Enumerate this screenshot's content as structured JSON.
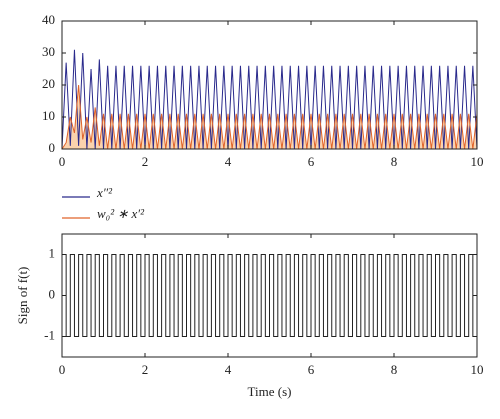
{
  "chart_data": [
    {
      "type": "line",
      "x": [
        0,
        0.1,
        0.2,
        0.3,
        0.4,
        0.5,
        0.6,
        0.7,
        0.8,
        0.9,
        1,
        1.1,
        1.2,
        1.3,
        1.4,
        1.5,
        1.6,
        1.7,
        1.8,
        1.9,
        2,
        2.1,
        2.2,
        2.3,
        2.4,
        2.5,
        2.6,
        2.7,
        2.8,
        2.9,
        3,
        3.1,
        3.2,
        3.3,
        3.4,
        3.5,
        3.6,
        3.7,
        3.8,
        3.9,
        4,
        4.1,
        4.2,
        4.3,
        4.4,
        4.5,
        4.6,
        4.7,
        4.8,
        4.9,
        5,
        5.1,
        5.2,
        5.3,
        5.4,
        5.5,
        5.6,
        5.7,
        5.8,
        5.9,
        6,
        6.1,
        6.2,
        6.3,
        6.4,
        6.5,
        6.6,
        6.7,
        6.8,
        6.9,
        7,
        7.1,
        7.2,
        7.3,
        7.4,
        7.5,
        7.6,
        7.7,
        7.8,
        7.9,
        8,
        8.1,
        8.2,
        8.3,
        8.4,
        8.5,
        8.6,
        8.7,
        8.8,
        8.9,
        9,
        9.1,
        9.2,
        9.3,
        9.4,
        9.5,
        9.6,
        9.7,
        9.8,
        9.9,
        10
      ],
      "series": [
        {
          "name": "x″²",
          "color": "#2a2a8c",
          "values": [
            0,
            27,
            1,
            31,
            1,
            30,
            0,
            25,
            0,
            28,
            0,
            26,
            0,
            26,
            0,
            26,
            0,
            26,
            0,
            26,
            0,
            26,
            0,
            26,
            0,
            26,
            0,
            26,
            0,
            26,
            0,
            26,
            0,
            26,
            0,
            26,
            0,
            26,
            0,
            26,
            0,
            26,
            0,
            26,
            0,
            26,
            0,
            26,
            0,
            26,
            0,
            26,
            0,
            26,
            0,
            26,
            0,
            26,
            0,
            26,
            0,
            26,
            0,
            26,
            0,
            26,
            0,
            26,
            0,
            26,
            0,
            26,
            0,
            26,
            0,
            26,
            0,
            26,
            0,
            26,
            0,
            26,
            0,
            26,
            0,
            26,
            0,
            26,
            0,
            26,
            0,
            26,
            0,
            26,
            0,
            26,
            0,
            26,
            0,
            26,
            0
          ]
        },
        {
          "name": "w₀² ∗ x′²",
          "color": "#e0642a",
          "fill": "#fbd3ad",
          "values": [
            0,
            2,
            10,
            5,
            20,
            3,
            10,
            2,
            13,
            1,
            11,
            0,
            11,
            0,
            11,
            0,
            11,
            0,
            11,
            0,
            11,
            0,
            11,
            0,
            11,
            0,
            11,
            0,
            11,
            0,
            11,
            0,
            11,
            0,
            11,
            0,
            11,
            0,
            11,
            0,
            11,
            0,
            11,
            0,
            11,
            0,
            11,
            0,
            11,
            0,
            11,
            0,
            11,
            0,
            11,
            0,
            11,
            0,
            11,
            0,
            11,
            0,
            11,
            0,
            11,
            0,
            11,
            0,
            11,
            0,
            11,
            0,
            11,
            0,
            11,
            0,
            11,
            0,
            11,
            0,
            11,
            0,
            11,
            0,
            11,
            0,
            11,
            0,
            11,
            0,
            11,
            0,
            11,
            0,
            11,
            0,
            11,
            0,
            11,
            0,
            11
          ]
        }
      ],
      "xlim": [
        0,
        10
      ],
      "xticks": [
        0,
        2,
        4,
        6,
        8,
        10
      ],
      "ylim": [
        0,
        40
      ],
      "yticks": [
        0,
        10,
        20,
        30,
        40
      ],
      "legend": "below"
    },
    {
      "type": "step",
      "x": [
        0,
        0.1,
        0.2,
        0.3,
        0.4,
        0.5,
        0.6,
        0.7,
        0.8,
        0.9,
        1,
        1.1,
        1.2,
        1.3,
        1.4,
        1.5,
        1.6,
        1.7,
        1.8,
        1.9,
        2,
        2.1,
        2.2,
        2.3,
        2.4,
        2.5,
        2.6,
        2.7,
        2.8,
        2.9,
        3,
        3.1,
        3.2,
        3.3,
        3.4,
        3.5,
        3.6,
        3.7,
        3.8,
        3.9,
        4,
        4.1,
        4.2,
        4.3,
        4.4,
        4.5,
        4.6,
        4.7,
        4.8,
        4.9,
        5,
        5.1,
        5.2,
        5.3,
        5.4,
        5.5,
        5.6,
        5.7,
        5.8,
        5.9,
        6,
        6.1,
        6.2,
        6.3,
        6.4,
        6.5,
        6.6,
        6.7,
        6.8,
        6.9,
        7,
        7.1,
        7.2,
        7.3,
        7.4,
        7.5,
        7.6,
        7.7,
        7.8,
        7.9,
        8,
        8.1,
        8.2,
        8.3,
        8.4,
        8.5,
        8.6,
        8.7,
        8.8,
        8.9,
        9,
        9.1,
        9.2,
        9.3,
        9.4,
        9.5,
        9.6,
        9.7,
        9.8,
        9.9,
        10
      ],
      "values": [
        1,
        -1,
        1,
        -1,
        1,
        -1,
        1,
        -1,
        1,
        -1,
        1,
        -1,
        1,
        -1,
        1,
        -1,
        1,
        -1,
        1,
        -1,
        1,
        -1,
        1,
        -1,
        1,
        -1,
        1,
        -1,
        1,
        -1,
        1,
        -1,
        1,
        -1,
        1,
        -1,
        1,
        -1,
        1,
        -1,
        1,
        -1,
        1,
        -1,
        1,
        -1,
        1,
        -1,
        1,
        -1,
        1,
        -1,
        1,
        -1,
        1,
        -1,
        1,
        -1,
        1,
        -1,
        1,
        -1,
        1,
        -1,
        1,
        -1,
        1,
        -1,
        1,
        -1,
        1,
        -1,
        1,
        -1,
        1,
        -1,
        1,
        -1,
        1,
        -1,
        1,
        -1,
        1,
        -1,
        1,
        -1,
        1,
        -1,
        1,
        -1,
        1,
        -1,
        1,
        -1,
        1,
        -1,
        1,
        -1,
        1,
        -1,
        1
      ],
      "color": "#222222",
      "xlabel": "Time (s)",
      "ylabel": "Sign of f(t)",
      "xlim": [
        0,
        10
      ],
      "xticks": [
        0,
        2,
        4,
        6,
        8,
        10
      ],
      "ylim": [
        -1.5,
        1.5
      ],
      "yticks": [
        -1,
        0,
        1
      ]
    }
  ]
}
